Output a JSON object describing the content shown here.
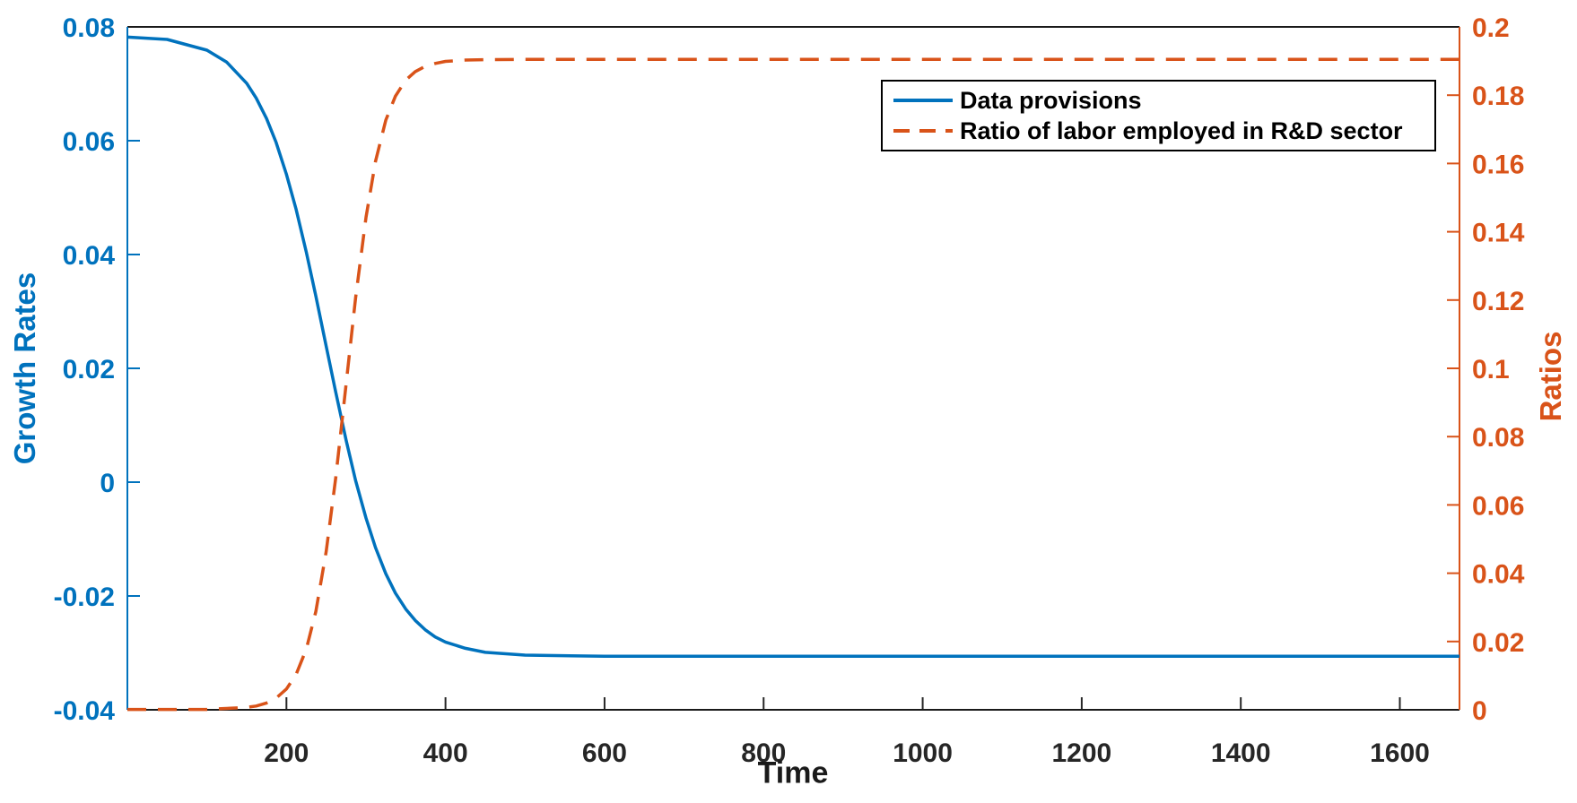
{
  "chart_data": {
    "type": "line",
    "title": "",
    "xlabel": "Time",
    "grid": false,
    "background_color": "#ffffff",
    "x_axis": {
      "lim": [
        0,
        1675
      ],
      "ticks": [
        200,
        400,
        600,
        800,
        1000,
        1200,
        1400,
        1600
      ],
      "tick_labels": [
        "200",
        "400",
        "600",
        "800",
        "1000",
        "1200",
        "1400",
        "1600"
      ],
      "color": "#262626"
    },
    "y_axis_left": {
      "label": "Growth Rates",
      "lim": [
        -0.04,
        0.08
      ],
      "ticks": [
        -0.04,
        -0.02,
        0,
        0.02,
        0.04,
        0.06,
        0.08
      ],
      "tick_labels": [
        "-0.04",
        "-0.02",
        "0",
        "0.02",
        "0.04",
        "0.06",
        "0.08"
      ],
      "color": "#0072BD"
    },
    "y_axis_right": {
      "label": "Ratios",
      "lim": [
        0,
        0.2
      ],
      "ticks": [
        0,
        0.02,
        0.04,
        0.06,
        0.08,
        0.1,
        0.12,
        0.14,
        0.16,
        0.18,
        0.2
      ],
      "tick_labels": [
        "0",
        "0.02",
        "0.04",
        "0.06",
        "0.08",
        "0.1",
        "0.12",
        "0.14",
        "0.16",
        "0.18",
        "0.2"
      ],
      "color": "#D95319"
    },
    "legend": {
      "position": "top-right",
      "border_color": "#000000",
      "entries": [
        {
          "label": "Data provisions",
          "line_style": "solid",
          "color": "#0072BD"
        },
        {
          "label": "Ratio of labor employed in R&D sector",
          "line_style": "dashed",
          "color": "#D95319"
        }
      ]
    },
    "series": [
      {
        "name": "Data provisions",
        "axis": "left",
        "color": "#0072BD",
        "line_style": "solid",
        "line_width": 3.5,
        "points": [
          [
            0,
            0.0782
          ],
          [
            50,
            0.0778
          ],
          [
            100,
            0.0759
          ],
          [
            125,
            0.0738
          ],
          [
            150,
            0.0701
          ],
          [
            162,
            0.0675
          ],
          [
            175,
            0.0639
          ],
          [
            187,
            0.0597
          ],
          [
            200,
            0.0541
          ],
          [
            212,
            0.048
          ],
          [
            225,
            0.0404
          ],
          [
            237,
            0.0327
          ],
          [
            250,
            0.0239
          ],
          [
            262,
            0.0158
          ],
          [
            275,
            0.0074
          ],
          [
            287,
            0.0003
          ],
          [
            300,
            -0.0063
          ],
          [
            312,
            -0.0115
          ],
          [
            325,
            -0.0161
          ],
          [
            337,
            -0.0195
          ],
          [
            350,
            -0.0223
          ],
          [
            362,
            -0.0243
          ],
          [
            375,
            -0.026
          ],
          [
            387,
            -0.0272
          ],
          [
            400,
            -0.0281
          ],
          [
            425,
            -0.0292
          ],
          [
            450,
            -0.0299
          ],
          [
            500,
            -0.0304
          ],
          [
            600,
            -0.0306
          ],
          [
            800,
            -0.0306
          ],
          [
            1000,
            -0.0306
          ],
          [
            1200,
            -0.0306
          ],
          [
            1400,
            -0.0306
          ],
          [
            1675,
            -0.0306
          ]
        ]
      },
      {
        "name": "Ratio of labor employed in R&D sector",
        "axis": "right",
        "color": "#D95319",
        "line_style": "dashed",
        "line_width": 3.5,
        "points": [
          [
            0,
            0.0001
          ],
          [
            100,
            0.0001
          ],
          [
            150,
            0.0007
          ],
          [
            162,
            0.0011
          ],
          [
            175,
            0.002
          ],
          [
            187,
            0.0034
          ],
          [
            200,
            0.0061
          ],
          [
            212,
            0.0103
          ],
          [
            225,
            0.0178
          ],
          [
            237,
            0.0288
          ],
          [
            250,
            0.0463
          ],
          [
            262,
            0.068
          ],
          [
            275,
            0.0953
          ],
          [
            287,
            0.1206
          ],
          [
            300,
            0.1442
          ],
          [
            312,
            0.1606
          ],
          [
            325,
            0.1727
          ],
          [
            337,
            0.1797
          ],
          [
            350,
            0.1844
          ],
          [
            362,
            0.1869
          ],
          [
            375,
            0.1885
          ],
          [
            387,
            0.1893
          ],
          [
            400,
            0.1899
          ],
          [
            425,
            0.1903
          ],
          [
            450,
            0.1904
          ],
          [
            500,
            0.1905
          ],
          [
            600,
            0.1905
          ],
          [
            800,
            0.1905
          ],
          [
            1000,
            0.1905
          ],
          [
            1200,
            0.1905
          ],
          [
            1400,
            0.1905
          ],
          [
            1675,
            0.1905
          ]
        ]
      }
    ]
  }
}
